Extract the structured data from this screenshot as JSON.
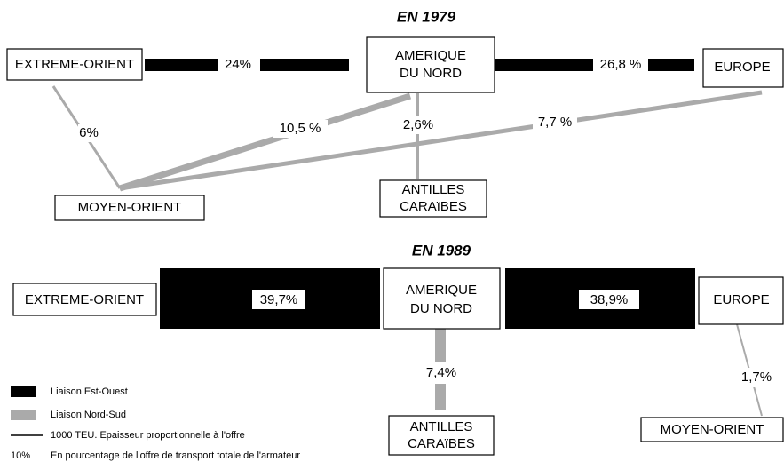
{
  "year1979": {
    "title": "EN 1979",
    "nodes": {
      "extreme_orient": "EXTREME-ORIENT",
      "amerique": [
        "AMERIQUE",
        "DU NORD"
      ],
      "europe": "EUROPE",
      "moyen_orient": "MOYEN-ORIENT",
      "antilles": [
        "ANTILLES",
        "CARAïBES"
      ]
    },
    "flows": {
      "eo_an": "24%",
      "an_eu": "26,8 %",
      "eo_mo": "6%",
      "an_mo": "10,5 %",
      "an_ac": "2,6%",
      "eu_mo": "7,7 %"
    }
  },
  "year1989": {
    "title": "EN 1989",
    "nodes": {
      "extreme_orient": "EXTREME-ORIENT",
      "amerique": [
        "AMERIQUE",
        "DU NORD"
      ],
      "europe": "EUROPE",
      "antilles": [
        "ANTILLES",
        "CARAïBES"
      ],
      "moyen_orient": "MOYEN-ORIENT"
    },
    "flows": {
      "eo_an": "39,7%",
      "an_eu": "38,9%",
      "an_ac": "7,4%",
      "eu_mo": "1,7%"
    }
  },
  "legend": {
    "est_ouest": "Liaison Est-Ouest",
    "nord_sud": "Liaison Nord-Sud",
    "epaisseur": "1000 TEU. Epaisseur proportionnelle à l'offre",
    "pct_sample": "10%",
    "pct_text": "En pourcentage de l'offre de transport totale de l'armateur"
  }
}
